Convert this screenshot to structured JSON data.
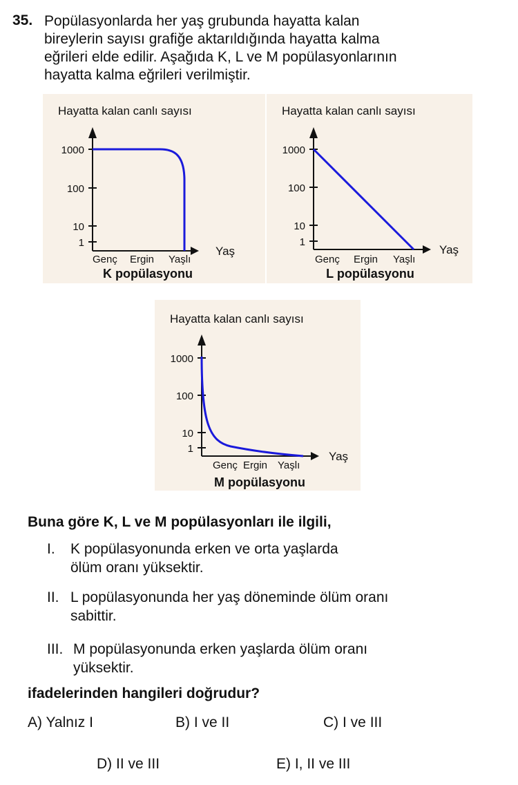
{
  "question": {
    "number": "35.",
    "intro_lines": [
      "Popülasyonlarda her yaş grubunda hayatta kalan",
      "bireylerin sayısı grafiğe aktarıldığında hayatta kalma",
      "eğrileri elde edilir. Aşağıda K, L ve M popülasyonlarının",
      "hayatta kalma eğrileri verilmiştir."
    ],
    "prompt": "Buna göre K, L ve M popülasyonları ile ilgili,",
    "statements": [
      {
        "num": "I.",
        "lines": [
          "K popülasyonunda erken ve orta yaşlarda",
          "ölüm oranı yüksektir."
        ]
      },
      {
        "num": "II.",
        "lines": [
          "L popülasyonunda her yaş döneminde ölüm oranı",
          "sabittir."
        ]
      },
      {
        "num": "III.",
        "lines": [
          "M popülasyonunda erken yaşlarda ölüm oranı",
          "yüksektir."
        ]
      }
    ],
    "closing": "ifadelerinden hangileri doğrudur?",
    "options": [
      {
        "letter": "A)",
        "text": "Yalnız I"
      },
      {
        "letter": "B)",
        "text": "I ve II"
      },
      {
        "letter": "C)",
        "text": "I ve III"
      },
      {
        "letter": "D)",
        "text": "II ve III"
      },
      {
        "letter": "E)",
        "text": "I, II ve III"
      }
    ]
  },
  "chart_data": [
    {
      "type": "line",
      "title": "K popülasyonu",
      "ylabel": "Hayatta kalan canlı sayısı",
      "xlabel": "Yaş",
      "y_scale": "log",
      "y_ticks": [
        "1000",
        "100",
        "10",
        "1"
      ],
      "x_ticks": [
        "Genç",
        "Ergin",
        "Yaşlı"
      ],
      "curve_shape": "convex",
      "line_color": "#1a1adb"
    },
    {
      "type": "line",
      "title": "L popülasyonu",
      "ylabel": "Hayatta kalan canlı sayısı",
      "xlabel": "Yaş",
      "y_scale": "log",
      "y_ticks": [
        "1000",
        "100",
        "10",
        "1"
      ],
      "x_ticks": [
        "Genç",
        "Ergin",
        "Yaşlı"
      ],
      "curve_shape": "diagonal",
      "line_color": "#1a1adb"
    },
    {
      "type": "line",
      "title": "M popülasyonu",
      "ylabel": "Hayatta kalan canlı sayısı",
      "xlabel": "Yaş",
      "y_scale": "log",
      "y_ticks": [
        "1000",
        "100",
        "10",
        "1"
      ],
      "x_ticks": [
        "Genç",
        "Ergin",
        "Yaşlı"
      ],
      "curve_shape": "concave",
      "line_color": "#1a1adb"
    }
  ]
}
